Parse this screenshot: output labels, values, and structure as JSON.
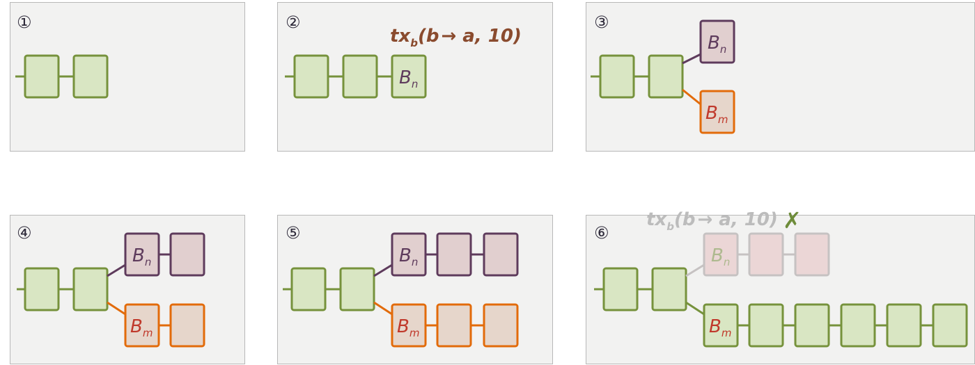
{
  "panels": [
    {
      "number": "①"
    },
    {
      "number": "②"
    },
    {
      "number": "③"
    },
    {
      "number": "④"
    },
    {
      "number": "⑤"
    },
    {
      "number": "⑥"
    }
  ],
  "labels": {
    "block_n_main": "B",
    "block_n_sub": "n",
    "block_m_main": "B",
    "block_m_sub": "m"
  },
  "transaction": {
    "prefix": "tx",
    "sub": "b",
    "open": "(b",
    "arrow": "→",
    "rest": " a, 10)",
    "rejected_mark": "✗"
  },
  "colors": {
    "green_fill": "#d9e6c3",
    "green_stroke": "#76923c",
    "purple_fill": "#e1cfcf",
    "purple_stroke": "#5e3b5c",
    "orange_fill": "#e6d6cb",
    "orange_stroke": "#e26b0a",
    "faded_fill": "#ebd6d6",
    "faded_stroke": "#c6c2c2",
    "tx_color": "#8a4b2e",
    "tx_faded": "#bcbcbc",
    "x_mark": "#6e8c3a"
  }
}
